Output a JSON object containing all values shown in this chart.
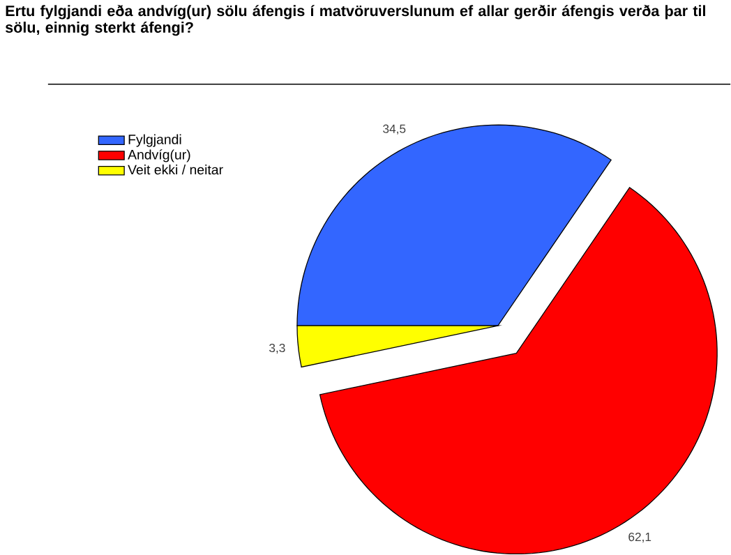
{
  "chart_data": {
    "type": "pie",
    "title": "Ertu fylgjandi eða andvíg(ur) sölu áfengis í matvöruverslunum ef allar gerðir áfengis verða þar til sölu, einnig sterkt áfengi?",
    "categories": [
      "Fylgjandi",
      "Andvíg(ur)",
      "Veit ekki / neitar"
    ],
    "values": [
      34.5,
      62.1,
      3.3
    ],
    "value_labels": [
      "34,5",
      "62,1",
      "3,3"
    ],
    "colors": [
      "#3366ff",
      "#ff0000",
      "#ffff00"
    ],
    "legend": "top left"
  }
}
